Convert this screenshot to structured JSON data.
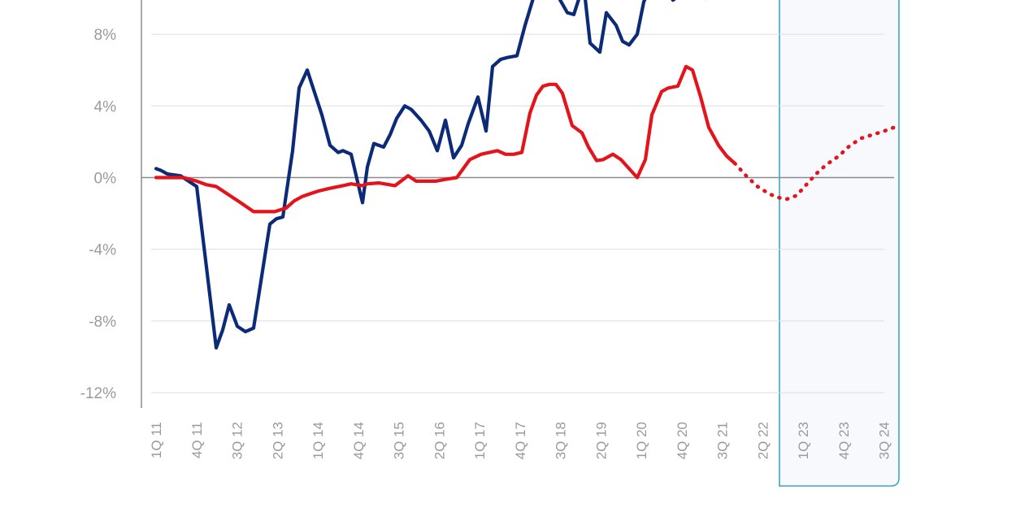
{
  "chart_data": {
    "type": "line",
    "title": "",
    "xlabel": "",
    "ylabel": "",
    "ylim": [
      -12,
      9.6
    ],
    "yticks": [
      {
        "value": 8,
        "label": "8%"
      },
      {
        "value": 4,
        "label": "4%"
      },
      {
        "value": 0,
        "label": "0%"
      },
      {
        "value": -4,
        "label": "-4%"
      },
      {
        "value": -8,
        "label": "-8%"
      },
      {
        "value": -12,
        "label": "-12%"
      }
    ],
    "x_tick_labels": [
      "1Q 11",
      "4Q 11",
      "3Q 12",
      "2Q 13",
      "1Q 14",
      "4Q 14",
      "3Q 15",
      "2Q 16",
      "1Q 17",
      "4Q 17",
      "3Q 18",
      "2Q 19",
      "1Q 20",
      "4Q 20",
      "3Q 21",
      "2Q 22",
      "1Q 23",
      "4Q 23",
      "3Q 24"
    ],
    "forecast_region_start": "1Q 23",
    "grid": true,
    "colors": {
      "navy": "#0b2a78",
      "red": "#e3141b",
      "forecast_border": "#3aa7c4",
      "forecast_fill": "#f8f9fd",
      "grid": "#dedede",
      "axis": "#8c8c8c"
    },
    "series": [
      {
        "color": "#0b2a78",
        "style": "solid",
        "x": [
          0,
          0.3,
          0.7,
          1.5,
          2.5,
          3.1,
          3.7,
          4.1,
          4.5,
          5,
          5.5,
          6,
          6.5,
          7,
          7.4,
          7.8,
          8.4,
          8.8,
          9.3,
          10.2,
          10.7,
          11.2,
          11.5,
          12,
          12.7,
          13,
          13.4,
          14,
          14.4,
          14.8,
          15.3,
          15.7,
          16.3,
          16.8,
          17.3,
          17.8,
          18.3,
          18.8,
          19.2,
          19.8,
          20.3,
          20.7,
          21.2,
          21.6,
          22.2,
          22.7,
          23.2,
          23.5,
          23.8,
          24.4,
          24.8,
          25.3,
          25.7,
          26.3,
          26.7,
          27.3,
          27.7,
          28.3,
          28.7,
          29.1,
          29.6,
          30,
          30.3,
          30.7,
          31.2,
          31.8,
          32.2,
          32.8,
          33.3,
          33.8,
          34.2
        ],
        "y": [
          0.5,
          0.4,
          0.2,
          0.1,
          -0.5,
          -5,
          -9.5,
          -8.5,
          -7.1,
          -8.3,
          -8.6,
          -8.4,
          -5.5,
          -2.6,
          -2.3,
          -2.2,
          1.5,
          5,
          6,
          3.5,
          1.8,
          1.4,
          1.5,
          1.3,
          -1.4,
          0.6,
          1.9,
          1.7,
          2.4,
          3.3,
          4,
          3.8,
          3.2,
          2.6,
          1.5,
          3.2,
          1.1,
          1.8,
          3,
          4.5,
          2.6,
          6.2,
          6.6,
          6.7,
          6.8,
          8.5,
          10,
          10.3,
          10.8,
          11.1,
          10,
          9.2,
          9.1,
          10.8,
          7.5,
          7,
          9.2,
          8.5,
          7.6,
          7.4,
          8,
          9.8,
          10.4,
          10.2,
          10.7,
          9.9,
          10.2,
          10.6,
          10.2,
          10,
          10.5
        ]
      },
      {
        "color": "#e3141b",
        "style": "solid",
        "x": [
          0,
          1,
          1.7,
          2.5,
          3.1,
          3.7,
          4.2,
          5.2,
          6,
          6.7,
          7.3,
          8,
          8.5,
          9,
          9.5,
          10,
          10.7,
          11.5,
          12,
          12.7,
          13,
          13.7,
          14.7,
          15.5,
          16,
          16.5,
          17.2,
          17.8,
          18.5,
          19.3,
          20,
          20.5,
          21,
          21.5,
          22,
          22.5,
          23,
          23.4,
          23.8,
          24.2,
          24.6,
          25,
          25.6,
          26.2,
          26.6,
          27.1,
          27.5,
          28.1,
          28.6,
          29.1,
          29.6,
          30.1,
          30.5,
          31.1,
          31.5,
          32.1,
          32.6,
          33,
          33.5,
          34,
          34.6,
          35.1,
          35.6
        ],
        "y": [
          0,
          0,
          0,
          -0.2,
          -0.4,
          -0.5,
          -0.8,
          -1.4,
          -1.9,
          -1.9,
          -1.9,
          -1.7,
          -1.3,
          -1.05,
          -0.9,
          -0.75,
          -0.6,
          -0.45,
          -0.35,
          -0.45,
          -0.35,
          -0.3,
          -0.45,
          0.1,
          -0.2,
          -0.2,
          -0.2,
          -0.1,
          0,
          1,
          1.3,
          1.4,
          1.5,
          1.3,
          1.3,
          1.4,
          3.6,
          4.6,
          5.1,
          5.2,
          5.2,
          4.7,
          2.9,
          2.5,
          1.7,
          0.95,
          1,
          1.3,
          1,
          0.5,
          0,
          1,
          3.5,
          4.8,
          5,
          5.1,
          6.2,
          6,
          4.5,
          2.8,
          1.8,
          1.2,
          0.8
        ]
      },
      {
        "color": "#e3141b",
        "style": "dotted",
        "x": [
          35.6,
          36.3,
          37,
          37.7,
          38.2,
          38.8,
          39.4,
          40,
          40.6,
          41.2,
          42,
          42.7,
          43.4,
          44.1,
          44.8,
          45.4
        ],
        "y": [
          0.8,
          0.1,
          -0.5,
          -0.9,
          -1.1,
          -1.2,
          -1,
          -0.4,
          0.2,
          0.7,
          1.2,
          1.8,
          2.2,
          2.4,
          2.6,
          2.8
        ]
      }
    ]
  }
}
